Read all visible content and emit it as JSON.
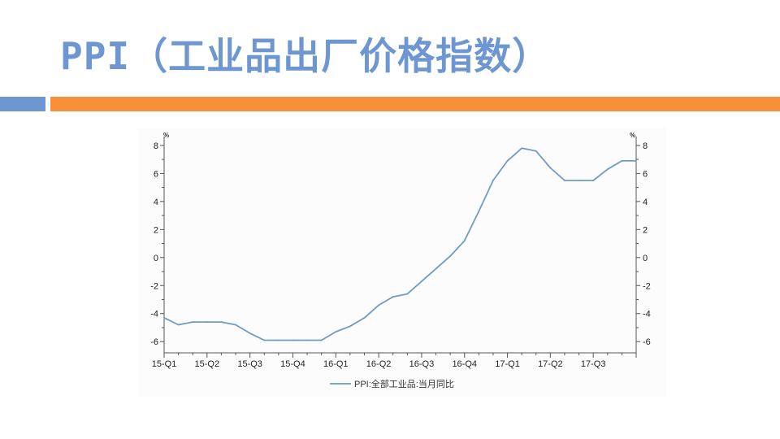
{
  "slide": {
    "title": "PPI（工业品出厂价格指数）"
  },
  "colors": {
    "title": "#6e97d2",
    "bar_blue": "#6e97d2",
    "bar_orange": "#f6913a",
    "series_line": "#6e9ac9",
    "axis": "#555555"
  },
  "chart_data": {
    "type": "line",
    "title": "",
    "xlabel": "",
    "ylabel": "",
    "y_unit_left": "%",
    "y_unit_right": "%",
    "ylim": [
      -6.8,
      8.4
    ],
    "yticks": [
      8,
      6,
      4,
      2,
      0,
      -2,
      -4,
      -6
    ],
    "grid": false,
    "legend_position": "bottom",
    "x_tick_labels": [
      "15-Q1",
      "15-Q2",
      "15-Q3",
      "15-Q4",
      "16-Q1",
      "16-Q2",
      "16-Q3",
      "16-Q4",
      "17-Q1",
      "17-Q2",
      "17-Q3"
    ],
    "x": [
      "2015-01",
      "2015-02",
      "2015-03",
      "2015-04",
      "2015-05",
      "2015-06",
      "2015-07",
      "2015-08",
      "2015-09",
      "2015-10",
      "2015-11",
      "2015-12",
      "2016-01",
      "2016-02",
      "2016-03",
      "2016-04",
      "2016-05",
      "2016-06",
      "2016-07",
      "2016-08",
      "2016-09",
      "2016-10",
      "2016-11",
      "2016-12",
      "2017-01",
      "2017-02",
      "2017-03",
      "2017-04",
      "2017-05",
      "2017-06",
      "2017-07",
      "2017-08",
      "2017-09",
      "2017-10"
    ],
    "series": [
      {
        "name": "PPI:全部工业品:当月同比",
        "values": [
          -4.3,
          -4.8,
          -4.6,
          -4.6,
          -4.6,
          -4.8,
          -5.4,
          -5.9,
          -5.9,
          -5.9,
          -5.9,
          -5.9,
          -5.3,
          -4.9,
          -4.3,
          -3.4,
          -2.8,
          -2.6,
          -1.7,
          -0.8,
          0.1,
          1.2,
          3.3,
          5.5,
          6.9,
          7.8,
          7.6,
          6.4,
          5.5,
          5.5,
          5.5,
          6.3,
          6.9,
          6.9
        ]
      }
    ]
  }
}
